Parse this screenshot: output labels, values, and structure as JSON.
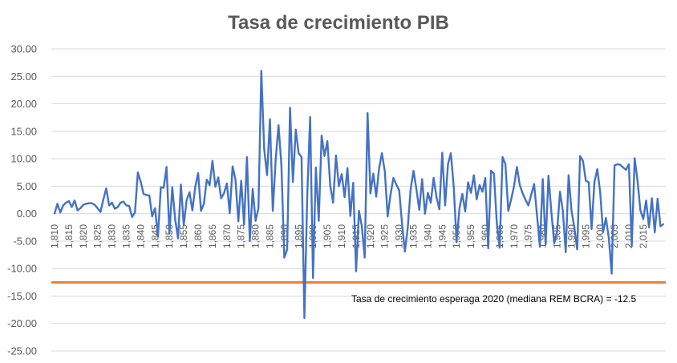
{
  "chart_data": {
    "type": "line",
    "title": "Tasa de crecimiento PIB",
    "xlabel": "",
    "ylabel": "",
    "ylim": [
      -25,
      30
    ],
    "yticks": [
      "30.00",
      "25.00",
      "20.00",
      "15.00",
      "10.00",
      "5.00",
      "0.00",
      "-5.00",
      "-10.00",
      "-15.00",
      "-20.00",
      "-25.00"
    ],
    "xtick_labels": [
      "1,810",
      "1,815",
      "1,820",
      "1,825",
      "1,830",
      "1,835",
      "1,840",
      "1,845",
      "1,850",
      "1,855",
      "1,860",
      "1,865",
      "1,870",
      "1,875",
      "1,880",
      "1,885",
      "1,890",
      "1,895",
      "1,900",
      "1,905",
      "1,910",
      "1,915",
      "1,920",
      "1,925",
      "1,930",
      "1,935",
      "1,940",
      "1,945",
      "1,950",
      "1,955",
      "1,960",
      "1,965",
      "1,970",
      "1,975",
      "1,980",
      "1,985",
      "1,990",
      "1,995",
      "2,000",
      "2,005",
      "2,010",
      "2,015"
    ],
    "grid": true,
    "colors": {
      "series": "#4472c4",
      "reference": "#ed7d31",
      "grid": "#d9d9d9",
      "text": "#595959"
    },
    "series": [
      {
        "x_start": 1810,
        "values": [
          0.0,
          1.8,
          0.2,
          1.5,
          2.0,
          2.3,
          1.2,
          2.4,
          0.6,
          1.0,
          1.6,
          1.8,
          1.9,
          1.9,
          1.6,
          1.0,
          0.3,
          2.6,
          4.6,
          1.5,
          2.0,
          0.9,
          1.2,
          2.0,
          2.2,
          1.5,
          1.4,
          -0.6,
          0.2,
          7.5,
          5.8,
          3.6,
          3.4,
          3.3,
          -0.5,
          1.0,
          -4.2,
          4.8,
          4.7,
          8.5,
          -3.6,
          4.8,
          -1.0,
          -4.5,
          5.3,
          -2.1,
          2.5,
          3.9,
          0.6,
          4.9,
          7.4,
          0.5,
          1.8,
          6.2,
          5.2,
          9.6,
          4.9,
          6.6,
          2.8,
          3.7,
          5.5,
          0.1,
          8.6,
          6.2,
          -1.4,
          6.0,
          -2.0,
          10.3,
          -5.0,
          4.5,
          -1.3,
          1.0,
          26.0,
          11.8,
          7.0,
          17.2,
          0.5,
          9.8,
          16.1,
          8.8,
          -8.0,
          -6.5,
          19.3,
          5.8,
          15.3,
          11.0,
          10.3,
          -19.0,
          3.4,
          17.6,
          -11.7,
          8.4,
          -1.3,
          14.2,
          10.5,
          13.2,
          5.1,
          2.0,
          10.6,
          5.0,
          7.2,
          3.0,
          8.3,
          -0.4,
          5.6,
          -10.5,
          0.5,
          -2.3,
          -8.0,
          18.3,
          3.7,
          7.3,
          3.1,
          8.2,
          11.0,
          7.7,
          -0.5,
          3.5,
          6.5,
          5.3,
          4.3,
          -1.8,
          -6.9,
          -2.5,
          4.5,
          7.8,
          4.5,
          0.7,
          6.3,
          0.0,
          3.8,
          2.0,
          6.5,
          3.0,
          0.8,
          11.1,
          1.5,
          9.0,
          11.0,
          4.9,
          -5.2,
          1.0,
          3.6,
          0.4,
          5.7,
          3.8,
          7.0,
          2.6,
          5.2,
          4.0,
          6.5,
          -6.3,
          7.8,
          7.3,
          -1.7,
          -6.2,
          10.3,
          9.0,
          0.5,
          2.6,
          5.0,
          8.5,
          5.2,
          3.7,
          2.5,
          1.5,
          3.5,
          5.4,
          -0.3,
          -6.0,
          6.3,
          -5.6,
          6.9,
          0.3,
          -5.4,
          -3.3,
          4.0,
          0.5,
          -7.0,
          7.0,
          0.6,
          -2.5,
          -6.5,
          10.5,
          9.6,
          6.0,
          5.7,
          -2.8,
          5.8,
          8.1,
          3.9,
          -3.4,
          -0.8,
          -4.4,
          -10.9,
          8.8,
          9.0,
          8.9,
          8.4,
          8.0,
          9.0,
          -5.9,
          10.1,
          6.0,
          0.6,
          -1.0,
          2.4,
          -2.5,
          2.8,
          -3.4,
          2.7,
          -2.3,
          -1.9
        ]
      }
    ],
    "reference_line": {
      "value": -12.5,
      "label": "Tasa de crecimiento esperaga 2020 (mediana REM BCRA) = -12.5"
    }
  }
}
